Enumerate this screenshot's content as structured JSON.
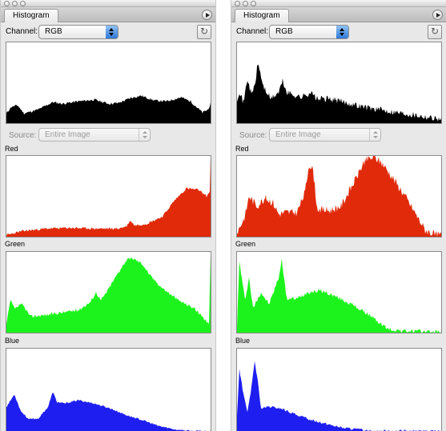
{
  "panels": [
    {
      "tab_title": "Histogram",
      "channel_label": "Channel:",
      "channel_value": "RGB",
      "source_label": "Source:",
      "source_value": "Entire Image",
      "channels": [
        {
          "label": "",
          "color": "#000000"
        },
        {
          "label": "Red",
          "color": "#e02a0a"
        },
        {
          "label": "Green",
          "color": "#1cf31c"
        },
        {
          "label": "Blue",
          "color": "#1e1ef0"
        }
      ]
    },
    {
      "tab_title": "Histogram",
      "channel_label": "Channel:",
      "channel_value": "RGB",
      "source_label": "Source:",
      "source_value": "Entire Image",
      "channels": [
        {
          "label": "",
          "color": "#000000"
        },
        {
          "label": "Red",
          "color": "#e02a0a"
        },
        {
          "label": "Green",
          "color": "#1cf31c"
        },
        {
          "label": "Blue",
          "color": "#1e1ef0"
        }
      ]
    }
  ]
}
